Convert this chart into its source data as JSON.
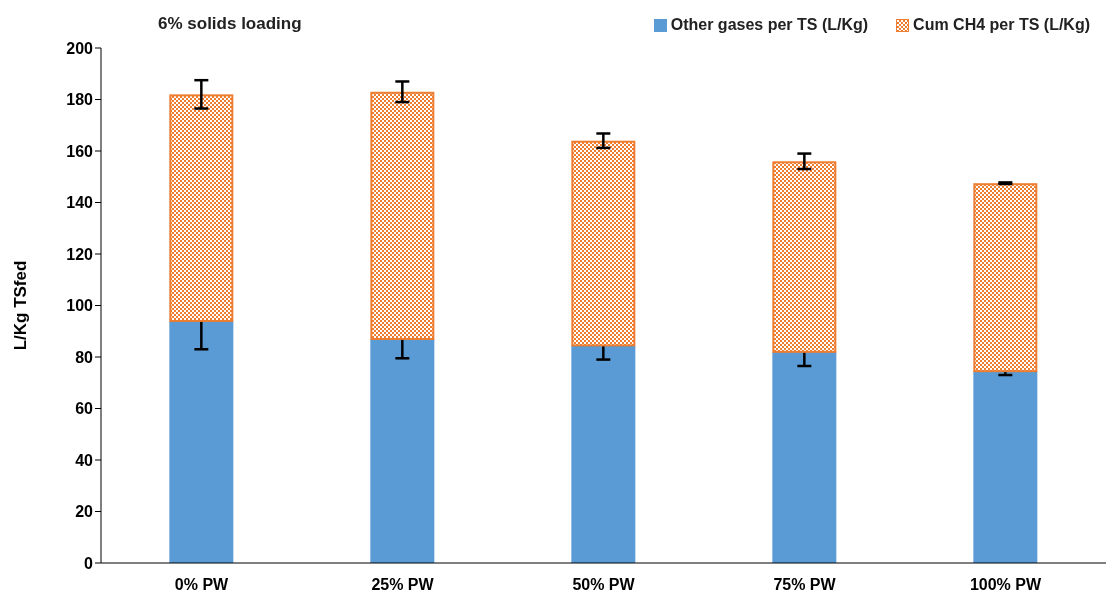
{
  "chart_data": {
    "type": "bar",
    "title": "6% solids loading",
    "ylabel": "L/Kg TSfed",
    "stacked": true,
    "categories": [
      "0% PW",
      "25% PW",
      "50% PW",
      "75% PW",
      "100% PW"
    ],
    "series": [
      {
        "name": "Other gases per TS (L/Kg)",
        "color": "#5b9bd5",
        "values": [
          94,
          87,
          84.5,
          82,
          74.5
        ],
        "errors": [
          11,
          7.5,
          5.5,
          5.5,
          1.5
        ]
      },
      {
        "name": "Cum CH4 per TS (L/Kg)",
        "color": "#ed7d31",
        "values": [
          88,
          96,
          79.5,
          74,
          73
        ],
        "errors": [
          5.5,
          4,
          2.8,
          3,
          0.3
        ]
      }
    ],
    "ylim": [
      0,
      200
    ],
    "yticks": [
      0,
      20,
      40,
      60,
      80,
      100,
      120,
      140,
      160,
      180,
      200
    ],
    "grid": false,
    "legend": "top right"
  }
}
